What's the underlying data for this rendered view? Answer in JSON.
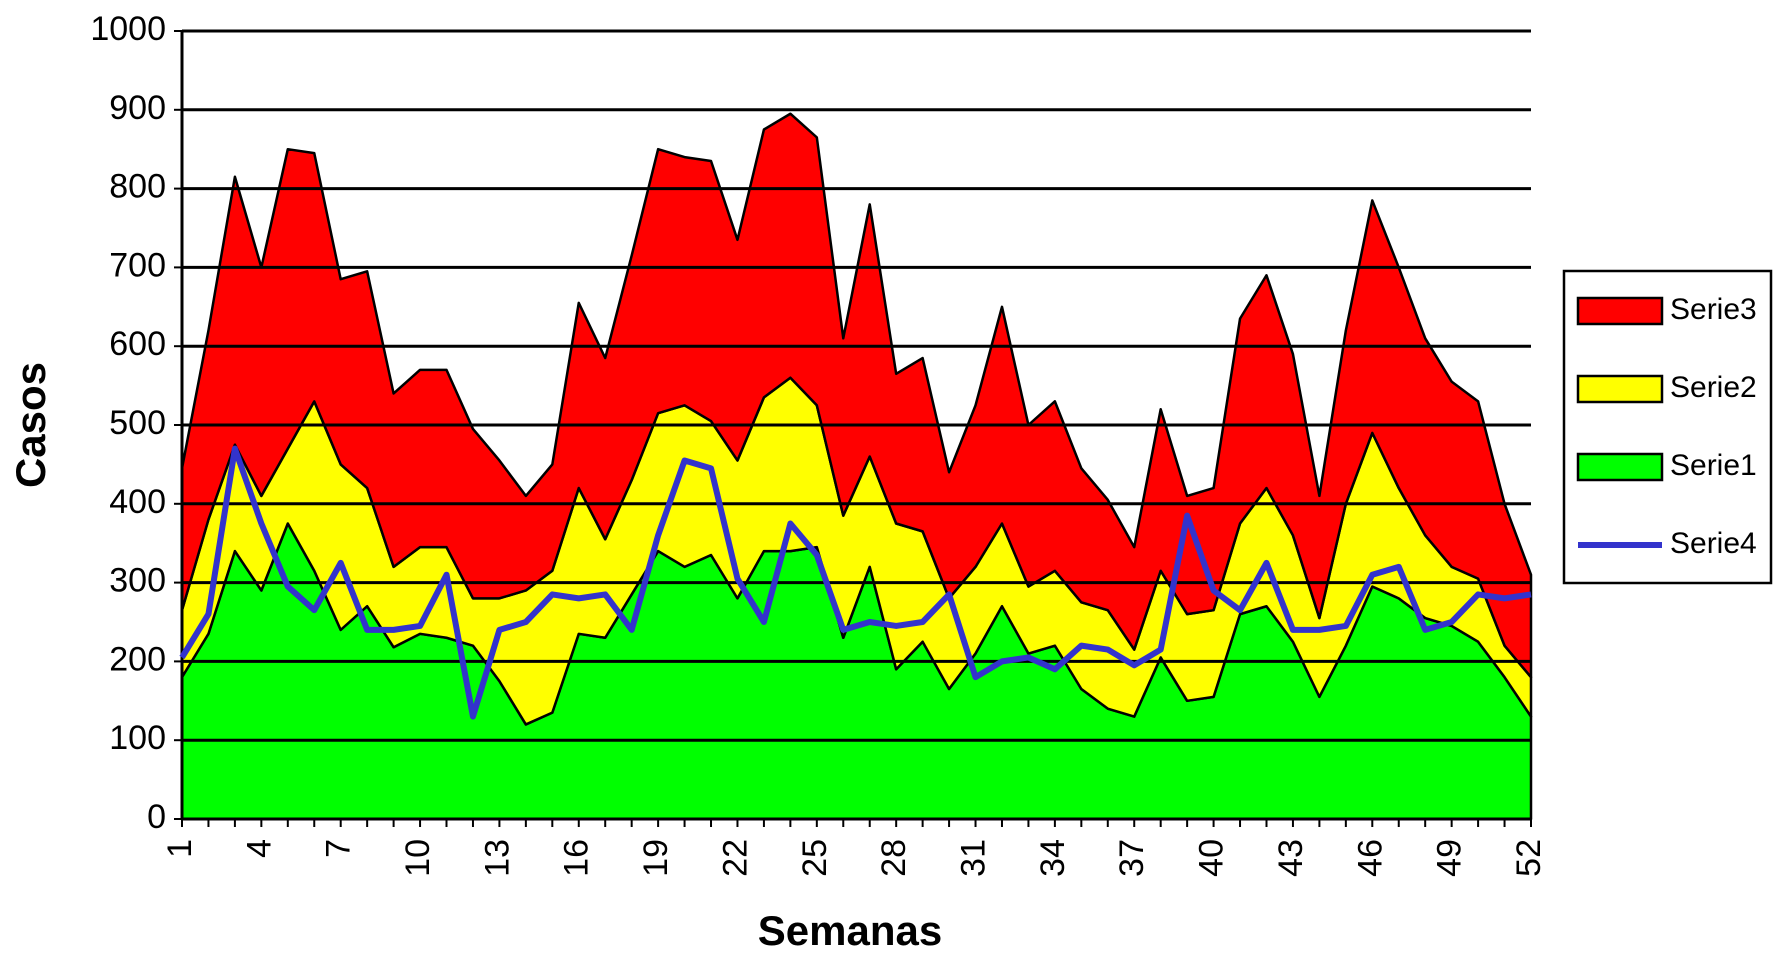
{
  "chart_data": {
    "type": "stacked_area",
    "x_label": "Semanas",
    "y_label": "Casos",
    "categories": [
      "1",
      null,
      null,
      "4",
      null,
      null,
      "7",
      null,
      null,
      "10",
      null,
      null,
      "13",
      null,
      null,
      "16",
      null,
      null,
      "19",
      null,
      null,
      "22",
      null,
      null,
      "25",
      null,
      null,
      "28",
      null,
      null,
      "31",
      null,
      null,
      "34",
      null,
      null,
      "37",
      null,
      null,
      "40",
      null,
      null,
      "43",
      null,
      null,
      "46",
      null,
      null,
      "49",
      null,
      null,
      "52"
    ],
    "series": [
      {
        "name": "Serie1",
        "color": "#00ff00",
        "type": "area",
        "values": [
          180,
          235,
          340,
          290,
          375,
          315,
          240,
          270,
          218,
          235,
          230,
          220,
          175,
          120,
          135,
          235,
          230,
          285,
          340,
          320,
          335,
          280,
          340,
          340,
          345,
          230,
          320,
          190,
          225,
          165,
          210,
          270,
          210,
          220,
          165,
          140,
          130,
          205,
          150,
          155,
          260,
          270,
          225,
          155,
          220,
          295,
          280,
          255,
          245,
          225,
          180,
          130
        ]
      },
      {
        "name": "Serie2",
        "color": "#ffff00",
        "type": "area",
        "values": [
          85,
          145,
          135,
          120,
          95,
          215,
          210,
          150,
          102,
          110,
          115,
          60,
          105,
          170,
          180,
          185,
          125,
          145,
          175,
          205,
          170,
          175,
          195,
          220,
          180,
          155,
          140,
          185,
          140,
          115,
          110,
          105,
          85,
          95,
          110,
          125,
          85,
          110,
          110,
          110,
          115,
          150,
          135,
          100,
          180,
          195,
          140,
          105,
          75,
          80,
          40,
          50
        ]
      },
      {
        "name": "Serie3",
        "color": "#ff0000",
        "type": "area",
        "values": [
          180,
          240,
          340,
          290,
          380,
          315,
          235,
          275,
          220,
          225,
          225,
          215,
          175,
          120,
          135,
          235,
          230,
          285,
          335,
          315,
          330,
          280,
          340,
          335,
          340,
          225,
          320,
          190,
          220,
          160,
          205,
          275,
          205,
          215,
          170,
          140,
          130,
          205,
          150,
          155,
          260,
          270,
          230,
          155,
          220,
          295,
          280,
          250,
          235,
          225,
          180,
          130
        ]
      },
      {
        "name": "Serie4",
        "color": "#3333cc",
        "type": "line",
        "values": [
          205,
          260,
          470,
          375,
          295,
          265,
          325,
          240,
          240,
          245,
          310,
          130,
          240,
          250,
          285,
          280,
          285,
          240,
          360,
          455,
          445,
          305,
          250,
          375,
          335,
          240,
          250,
          245,
          250,
          285,
          180,
          200,
          205,
          190,
          220,
          215,
          195,
          215,
          385,
          290,
          265,
          325,
          240,
          240,
          245,
          310,
          320,
          240,
          250,
          285,
          280,
          285
        ]
      }
    ],
    "ylim": [
      0,
      1000
    ],
    "yticks": [
      0,
      100,
      200,
      300,
      400,
      500,
      600,
      700,
      800,
      900,
      1000
    ],
    "grid": true,
    "legend": "right"
  }
}
